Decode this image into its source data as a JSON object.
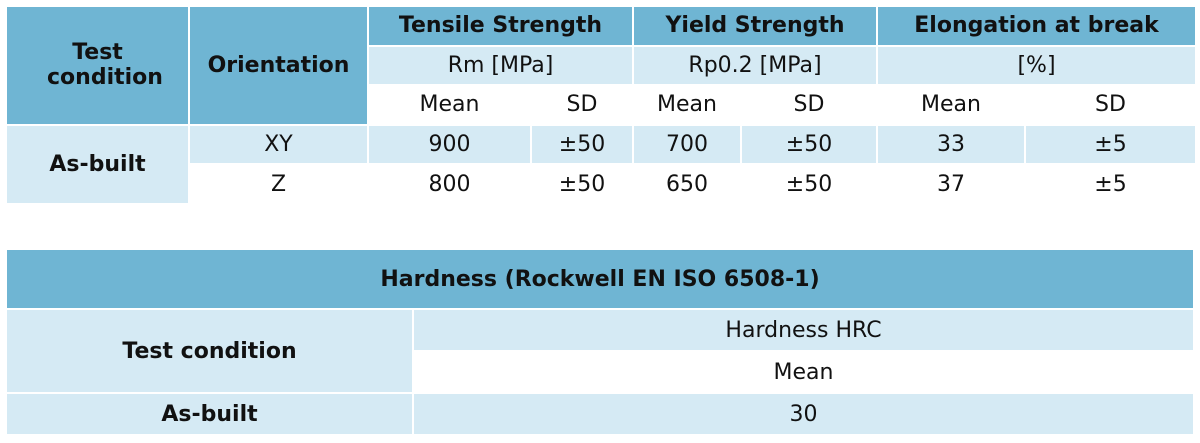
{
  "table1": {
    "header": {
      "test_condition": "Test condition",
      "orientation": "Orientation",
      "groups": [
        {
          "title": "Tensile Strength",
          "unit": "Rm [MPa]"
        },
        {
          "title": "Yield Strength",
          "unit": "Rp0.2 [MPa]"
        },
        {
          "title": "Elongation at break",
          "unit": "[%]"
        }
      ],
      "subheaders": [
        "Mean",
        "SD",
        "Mean",
        "SD",
        "Mean",
        "SD"
      ]
    },
    "condition": "As-built",
    "rows": [
      {
        "orientation": "XY",
        "values": [
          900,
          "±50",
          700,
          "±50",
          33,
          "±5"
        ]
      },
      {
        "orientation": "Z",
        "values": [
          800,
          "±50",
          650,
          "±50",
          37,
          "±5"
        ]
      }
    ]
  },
  "table2": {
    "title": "Hardness (Rockwell EN ISO 6508-1)",
    "row_header": "Test condition",
    "measure": "Hardness HRC",
    "statistic": "Mean",
    "condition": "As-built",
    "value": 30
  }
}
